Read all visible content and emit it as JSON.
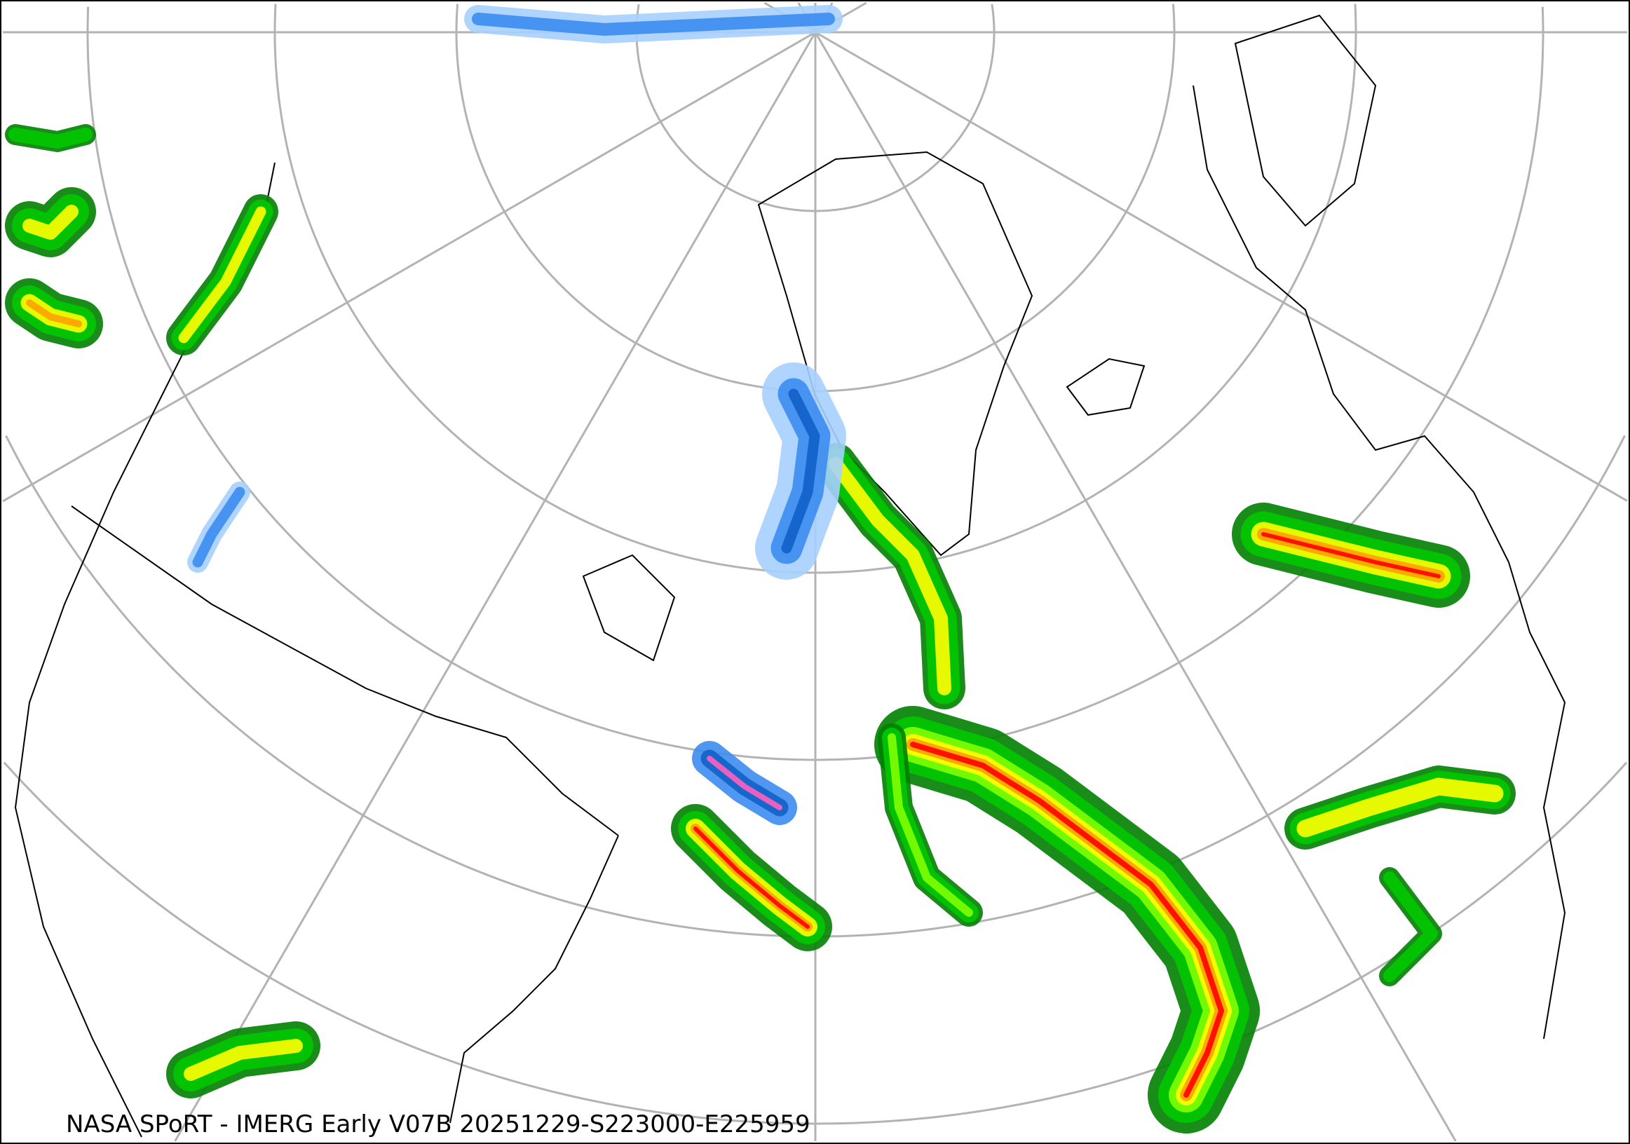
{
  "caption": "NASA SPoRT - IMERG Early V07B 20251229-S223000-E225959",
  "map": {
    "projection": "north polar stereographic",
    "graticule_color": "#b3b3b3",
    "boundary_color": "#000000",
    "precip_palette": {
      "light_blue": "#a6d0ff",
      "blue": "#3c8cf0",
      "dark_blue": "#1060c8",
      "pink": "#ff60c0",
      "dark_green": "#008000",
      "green": "#00c800",
      "light_green": "#80ff00",
      "yellow": "#ffff00",
      "orange": "#ffa000",
      "red": "#ff0000"
    }
  }
}
